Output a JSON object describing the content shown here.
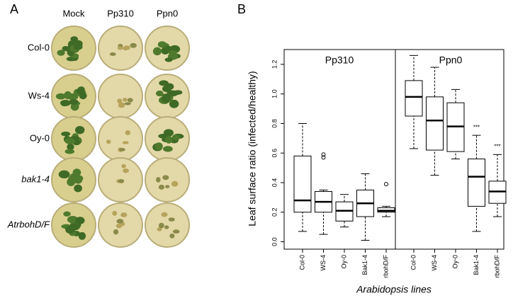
{
  "photo_panel": {
    "label": "A",
    "columns": [
      "Mock",
      "Pp310",
      "Ppn0"
    ],
    "rows": [
      "Col-0",
      "Ws-4",
      "Oy-0",
      "bak1-4",
      "AtrbohD/F"
    ]
  },
  "chart_data": {
    "type": "box",
    "label": "B",
    "ylabel": "Leaf surface ratio (infected/healthy)",
    "xlabel": "Arabidopsis lines",
    "ylim": [
      -0.05,
      1.3
    ],
    "yticks": [
      {
        "value": 0,
        "label": "0.0"
      },
      0.2,
      0.4,
      0.6,
      0.8,
      {
        "value": 1,
        "label": "1.0"
      },
      1.2
    ],
    "panels": [
      {
        "title": "Pp310",
        "categories": [
          "Col-0",
          "WS-4",
          "Oy-0",
          "Bak1-4",
          "rbohD/F"
        ],
        "boxes": [
          {
            "low": 0.07,
            "q1": 0.2,
            "median": 0.28,
            "q3": 0.58,
            "high": 0.8,
            "outliers": []
          },
          {
            "low": 0.05,
            "q1": 0.2,
            "median": 0.27,
            "q3": 0.34,
            "high": 0.35,
            "outliers": [
              0.59,
              0.57
            ]
          },
          {
            "low": 0.1,
            "q1": 0.14,
            "median": 0.21,
            "q3": 0.27,
            "high": 0.32,
            "outliers": []
          },
          {
            "low": 0.01,
            "q1": 0.17,
            "median": 0.26,
            "q3": 0.35,
            "high": 0.46,
            "outliers": []
          },
          {
            "low": 0.17,
            "q1": 0.2,
            "median": 0.21,
            "q3": 0.23,
            "high": 0.24,
            "outliers": [
              0.39
            ]
          }
        ],
        "annotations": [
          null,
          null,
          null,
          null,
          null
        ]
      },
      {
        "title": "Ppn0",
        "categories": [
          "Col-0",
          "WS-4",
          "Oy-0",
          "Bak1-4",
          "rbohD/F"
        ],
        "boxes": [
          {
            "low": 0.63,
            "q1": 0.85,
            "median": 0.98,
            "q3": 1.09,
            "high": 1.26,
            "outliers": []
          },
          {
            "low": 0.45,
            "q1": 0.62,
            "median": 0.82,
            "q3": 0.98,
            "high": 1.18,
            "outliers": []
          },
          {
            "low": 0.56,
            "q1": 0.61,
            "median": 0.78,
            "q3": 0.94,
            "high": 1.03,
            "outliers": []
          },
          {
            "low": 0.07,
            "q1": 0.24,
            "median": 0.44,
            "q3": 0.56,
            "high": 0.72,
            "outliers": []
          },
          {
            "low": 0.17,
            "q1": 0.26,
            "median": 0.34,
            "q3": 0.41,
            "high": 0.59,
            "outliers": []
          }
        ],
        "annotations": [
          null,
          null,
          null,
          "***",
          "***"
        ]
      }
    ]
  }
}
